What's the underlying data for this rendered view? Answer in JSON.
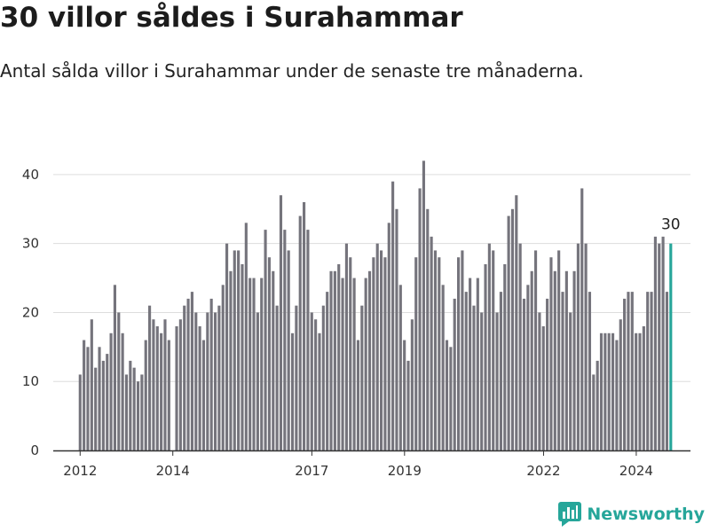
{
  "header": {
    "title": "30 villor såldes i Surahammar",
    "subtitle": "Antal sålda villor i Surahammar under de senaste tre månaderna."
  },
  "brand": {
    "name": "Newsworthy"
  },
  "colors": {
    "bar": "#75747c",
    "highlight": "#26a69a",
    "grid": "#dddddd",
    "brand": "#26a69a"
  },
  "chart_data": {
    "type": "bar",
    "title": "30 villor såldes i Surahammar",
    "subtitle": "Antal sålda villor i Surahammar under de senaste tre månaderna.",
    "xlabel": "",
    "ylabel": "",
    "x_range": [
      2011.42,
      2025.17
    ],
    "ylim": [
      0,
      45
    ],
    "yticks": [
      0,
      10,
      20,
      30,
      40
    ],
    "xticks": [
      {
        "value": 2012.0,
        "label": "2012"
      },
      {
        "value": 2014.0,
        "label": "2014"
      },
      {
        "value": 2017.0,
        "label": "2017"
      },
      {
        "value": 2019.0,
        "label": "2019"
      },
      {
        "value": 2022.0,
        "label": "2022"
      },
      {
        "value": 2024.0,
        "label": "2024"
      }
    ],
    "grid": true,
    "start": 2012.0,
    "step": 0.0833,
    "highlight_last": true,
    "end_label": "30",
    "values": [
      11,
      16,
      15,
      19,
      12,
      15,
      13,
      14,
      17,
      24,
      20,
      17,
      11,
      13,
      12,
      10,
      11,
      16,
      21,
      19,
      18,
      17,
      19,
      16,
      null,
      18,
      19,
      21,
      22,
      23,
      20,
      18,
      16,
      20,
      22,
      20,
      21,
      24,
      30,
      26,
      29,
      29,
      27,
      33,
      25,
      25,
      20,
      25,
      32,
      28,
      26,
      21,
      37,
      32,
      29,
      17,
      21,
      34,
      36,
      32,
      20,
      19,
      17,
      21,
      23,
      26,
      26,
      27,
      25,
      30,
      28,
      25,
      16,
      21,
      25,
      26,
      28,
      30,
      29,
      28,
      33,
      39,
      35,
      24,
      16,
      13,
      19,
      28,
      38,
      42,
      35,
      31,
      29,
      28,
      24,
      16,
      15,
      22,
      28,
      29,
      23,
      25,
      21,
      25,
      20,
      27,
      30,
      29,
      20,
      23,
      27,
      34,
      35,
      37,
      30,
      22,
      24,
      26,
      29,
      20,
      18,
      22,
      28,
      26,
      29,
      23,
      26,
      20,
      26,
      30,
      38,
      30,
      23,
      11,
      13,
      17,
      17,
      17,
      17,
      16,
      19,
      22,
      23,
      23,
      17,
      17,
      18,
      23,
      23,
      31,
      30,
      31,
      23,
      30
    ]
  }
}
